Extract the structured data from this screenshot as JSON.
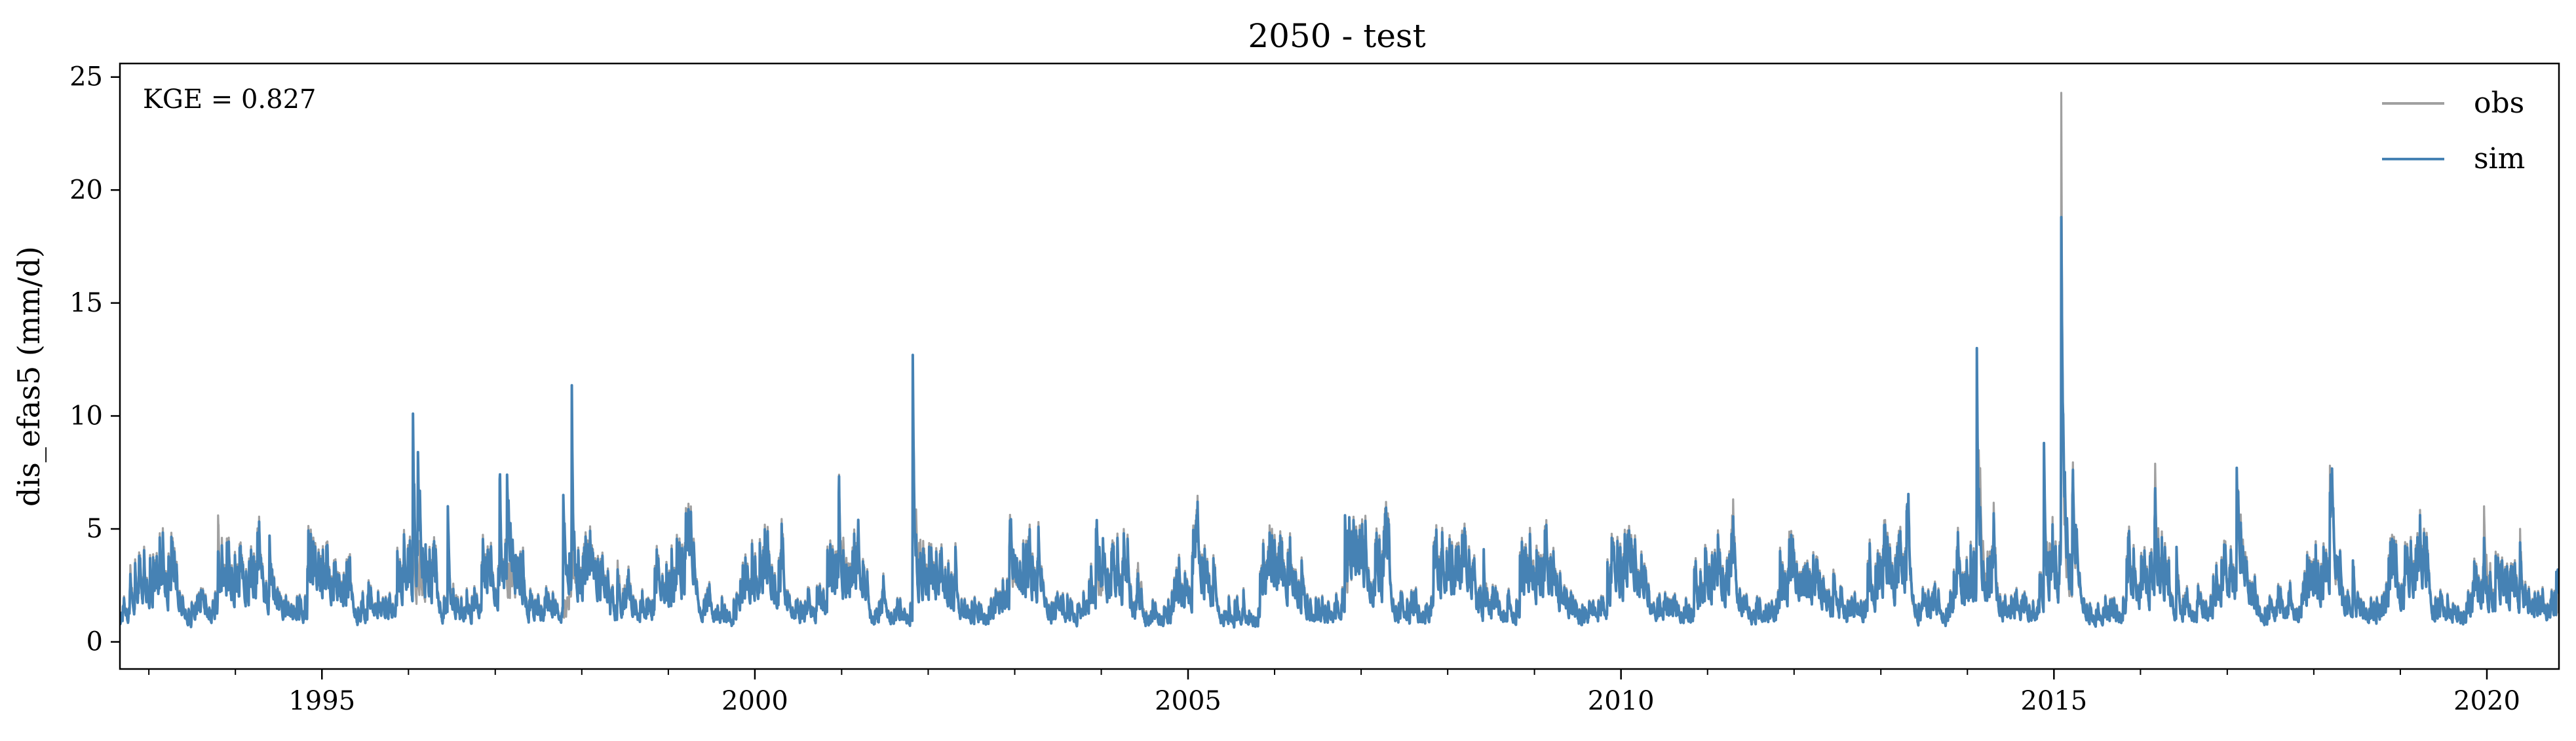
{
  "chart_data": {
    "type": "line",
    "title": "2050 - test",
    "xlabel": "",
    "ylabel": "dis_efas5 (mm/d)",
    "annotation": "KGE = 0.827",
    "legend_position": "top-right",
    "grid": false,
    "xlim": [
      "1992-09-01",
      "2020-10-31"
    ],
    "ylim": [
      -1.2,
      25.6
    ],
    "x_ticks": [
      "1995",
      "2000",
      "2005",
      "2010",
      "2015",
      "2020"
    ],
    "y_ticks": [
      "0",
      "5",
      "10",
      "15",
      "20",
      "25"
    ],
    "baseflow": 0.3,
    "colors": {
      "obs": "#a0a0a0",
      "sim": "#4682b4"
    },
    "series": [
      {
        "name": "obs",
        "peaks": [
          [
            "1992-10-15",
            3.4
          ],
          [
            "1993-10-20",
            5.6
          ],
          [
            "1994-05-25",
            4.6
          ],
          [
            "1996-01-20",
            4.2
          ],
          [
            "1996-06-15",
            5.4
          ],
          [
            "1997-01-20",
            6.8
          ],
          [
            "1997-11-20",
            6.2
          ],
          [
            "1998-06-01",
            3.6
          ],
          [
            "2000-02-15",
            3.4
          ],
          [
            "2000-12-20",
            6.4
          ],
          [
            "2001-03-10",
            4.4
          ],
          [
            "2001-10-28",
            8.8
          ],
          [
            "2002-12-10",
            4.8
          ],
          [
            "2003-04-10",
            3.8
          ],
          [
            "2003-12-10",
            5.0
          ],
          [
            "2004-06-01",
            3.2
          ],
          [
            "2004-12-20",
            2.8
          ],
          [
            "2005-12-01",
            3.6
          ],
          [
            "2006-10-25",
            5.0
          ],
          [
            "2007-04-15",
            4.0
          ],
          [
            "2008-06-01",
            4.0
          ],
          [
            "2008-12-10",
            3.4
          ],
          [
            "2009-12-01",
            1.8
          ],
          [
            "2011-04-15",
            5.6
          ],
          [
            "2011-12-10",
            3.6
          ],
          [
            "2012-06-15",
            3.2
          ],
          [
            "2013-01-20",
            4.4
          ],
          [
            "2013-04-20",
            6.0
          ],
          [
            "2014-02-10",
            11.8
          ],
          [
            "2014-04-20",
            4.6
          ],
          [
            "2014-11-20",
            8.4
          ],
          [
            "2015-02-01",
            24.3
          ],
          [
            "2015-03-20",
            7.0
          ],
          [
            "2016-03-01",
            6.5
          ],
          [
            "2016-06-01",
            4.0
          ],
          [
            "2017-02-10",
            7.0
          ],
          [
            "2018-03-10",
            7.8
          ],
          [
            "2018-06-15",
            3.6
          ],
          [
            "2019-01-20",
            2.6
          ],
          [
            "2019-12-20",
            6.0
          ],
          [
            "2020-05-20",
            5.0
          ]
        ]
      },
      {
        "name": "sim",
        "peaks": [
          [
            "1992-10-15",
            3.0
          ],
          [
            "1993-10-20",
            4.0
          ],
          [
            "1994-05-25",
            4.7
          ],
          [
            "1996-01-20",
            10.1
          ],
          [
            "1996-02-10",
            8.4
          ],
          [
            "1996-06-15",
            6.0
          ],
          [
            "1997-01-20",
            7.2
          ],
          [
            "1997-02-20",
            7.4
          ],
          [
            "1997-11-20",
            11.1
          ],
          [
            "1997-10-15",
            6.5
          ],
          [
            "1998-06-01",
            3.2
          ],
          [
            "2000-02-15",
            3.0
          ],
          [
            "2000-12-20",
            6.6
          ],
          [
            "2001-03-10",
            4.6
          ],
          [
            "2001-10-28",
            12.7
          ],
          [
            "2002-12-10",
            4.2
          ],
          [
            "2003-04-10",
            3.8
          ],
          [
            "2003-12-10",
            5.0
          ],
          [
            "2004-06-01",
            2.8
          ],
          [
            "2004-12-20",
            2.4
          ],
          [
            "2005-12-01",
            3.6
          ],
          [
            "2006-10-25",
            5.6
          ],
          [
            "2007-04-15",
            4.1
          ],
          [
            "2008-06-01",
            4.1
          ],
          [
            "2008-12-10",
            3.4
          ],
          [
            "2009-12-01",
            1.6
          ],
          [
            "2011-04-15",
            4.2
          ],
          [
            "2011-12-10",
            3.2
          ],
          [
            "2012-06-15",
            3.0
          ],
          [
            "2013-01-20",
            4.2
          ],
          [
            "2013-04-20",
            5.8
          ],
          [
            "2014-02-10",
            13.0
          ],
          [
            "2014-04-20",
            4.2
          ],
          [
            "2014-11-20",
            8.8
          ],
          [
            "2015-02-01",
            18.8
          ],
          [
            "2015-03-20",
            6.5
          ],
          [
            "2016-03-01",
            5.4
          ],
          [
            "2016-06-01",
            4.2
          ],
          [
            "2017-02-10",
            7.7
          ],
          [
            "2018-03-10",
            6.6
          ],
          [
            "2018-06-15",
            3.6
          ],
          [
            "2019-01-20",
            2.4
          ],
          [
            "2019-12-20",
            4.6
          ],
          [
            "2020-05-20",
            4.4
          ],
          [
            "2020-10-20",
            3.1
          ]
        ]
      }
    ]
  }
}
